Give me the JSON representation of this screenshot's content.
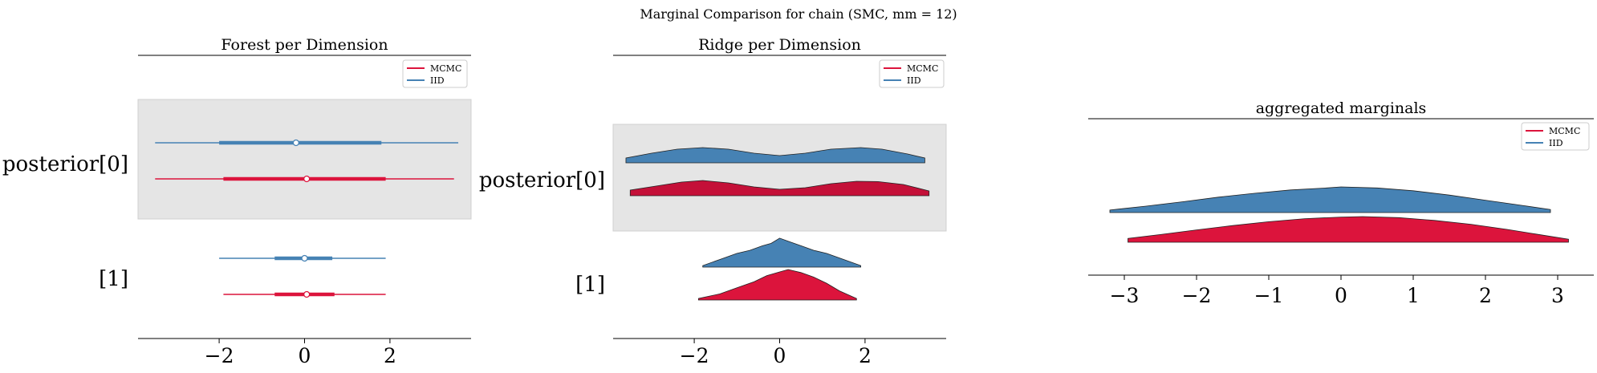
{
  "figure": {
    "title": "Marginal Comparison for chain (SMC, mm = 12)"
  },
  "colors": {
    "mcmc": "#dc143c",
    "mcmc_ridge_dark": "#c41038",
    "iid": "#4682b4",
    "band": "#e5e5e5"
  },
  "chart_data": [
    {
      "type": "forest",
      "title": "Forest per Dimension",
      "xlim": [
        -3.9,
        3.9
      ],
      "xticks": [
        -2,
        0,
        2
      ],
      "y_labels": [
        "posterior[0]",
        "[1]"
      ],
      "shaded_rows": [
        "posterior[0]"
      ],
      "legend": {
        "entries": [
          "MCMC",
          "IID"
        ],
        "placement": "upper right"
      },
      "series": [
        {
          "name": "MCMC",
          "dims": [
            {
              "label": "posterior[0]",
              "hdi_low": -3.5,
              "hdi_high": 3.5,
              "iqr_low": -1.9,
              "iqr_high": 1.9,
              "median": 0.05
            },
            {
              "label": "[1]",
              "hdi_low": -1.9,
              "hdi_high": 1.9,
              "iqr_low": -0.7,
              "iqr_high": 0.7,
              "median": 0.05
            }
          ]
        },
        {
          "name": "IID",
          "dims": [
            {
              "label": "posterior[0]",
              "hdi_low": -3.5,
              "hdi_high": 3.6,
              "iqr_low": -2.0,
              "iqr_high": 1.8,
              "median": -0.2
            },
            {
              "label": "[1]",
              "hdi_low": -2.0,
              "hdi_high": 1.9,
              "iqr_low": -0.7,
              "iqr_high": 0.65,
              "median": 0.0
            }
          ]
        }
      ]
    },
    {
      "type": "ridge",
      "title": "Ridge per Dimension",
      "xlim": [
        -3.9,
        3.9
      ],
      "xticks": [
        -2,
        0,
        2
      ],
      "y_labels": [
        "posterior[0]",
        "[1]"
      ],
      "shaded_rows": [
        "posterior[0]"
      ],
      "legend": {
        "entries": [
          "MCMC",
          "IID"
        ],
        "placement": "upper right"
      },
      "series": [
        {
          "name": "MCMC",
          "dims": [
            {
              "label": "posterior[0]",
              "x": [
                -3.5,
                -2.9,
                -2.3,
                -1.8,
                -1.2,
                -0.6,
                0.0,
                0.6,
                1.2,
                1.8,
                2.3,
                2.9,
                3.5
              ],
              "density": [
                0.35,
                0.6,
                0.85,
                0.95,
                0.8,
                0.55,
                0.4,
                0.5,
                0.75,
                0.9,
                0.88,
                0.7,
                0.3
              ]
            },
            {
              "label": "[1]",
              "x": [
                -1.9,
                -1.4,
                -1.0,
                -0.6,
                -0.3,
                0.0,
                0.2,
                0.5,
                0.8,
                1.1,
                1.4,
                1.8
              ],
              "density": [
                0.05,
                0.2,
                0.4,
                0.6,
                0.8,
                0.92,
                1.0,
                0.9,
                0.75,
                0.55,
                0.3,
                0.05
              ]
            }
          ]
        },
        {
          "name": "IID",
          "dims": [
            {
              "label": "posterior[0]",
              "x": [
                -3.6,
                -3.0,
                -2.4,
                -1.8,
                -1.2,
                -0.6,
                0.0,
                0.6,
                1.2,
                1.9,
                2.4,
                3.0,
                3.4
              ],
              "density": [
                0.3,
                0.6,
                0.85,
                0.95,
                0.85,
                0.6,
                0.45,
                0.6,
                0.85,
                0.95,
                0.85,
                0.55,
                0.3
              ]
            },
            {
              "label": "[1]",
              "x": [
                -1.8,
                -1.4,
                -1.0,
                -0.7,
                -0.4,
                -0.2,
                0.0,
                0.2,
                0.5,
                0.8,
                1.1,
                1.5,
                1.9
              ],
              "density": [
                0.05,
                0.25,
                0.45,
                0.55,
                0.7,
                0.78,
                0.95,
                0.85,
                0.7,
                0.55,
                0.45,
                0.25,
                0.05
              ]
            }
          ]
        }
      ]
    },
    {
      "type": "ridge",
      "title": "aggregated marginals",
      "xlim": [
        -3.5,
        3.5
      ],
      "xticks": [
        -3,
        -2,
        -1,
        0,
        1,
        2,
        3
      ],
      "legend": {
        "entries": [
          "MCMC",
          "IID"
        ],
        "placement": "upper right"
      },
      "series": [
        {
          "name": "MCMC",
          "x": [
            -2.95,
            -2.5,
            -2.0,
            -1.5,
            -1.0,
            -0.5,
            0.0,
            0.3,
            0.8,
            1.3,
            1.8,
            2.3,
            2.7,
            3.15
          ],
          "density": [
            0.15,
            0.3,
            0.48,
            0.65,
            0.8,
            0.92,
            0.98,
            1.0,
            0.96,
            0.85,
            0.7,
            0.5,
            0.32,
            0.12
          ]
        },
        {
          "name": "IID",
          "x": [
            -3.2,
            -2.7,
            -2.2,
            -1.7,
            -1.2,
            -0.7,
            -0.2,
            0.0,
            0.5,
            1.0,
            1.5,
            2.0,
            2.5,
            2.9
          ],
          "density": [
            0.1,
            0.25,
            0.42,
            0.6,
            0.75,
            0.88,
            0.96,
            1.0,
            0.96,
            0.85,
            0.68,
            0.48,
            0.28,
            0.12
          ]
        }
      ]
    }
  ]
}
